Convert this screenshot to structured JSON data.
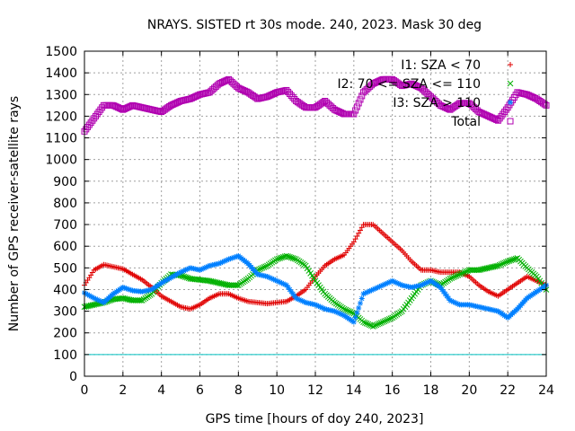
{
  "chart_data": {
    "type": "scatter",
    "title": "NRAYS. SISTED rt 30s mode. 240, 2023. Mask 30 deg",
    "xlabel": "GPS time [hours of doy 240, 2023]",
    "ylabel": "Number of GPS receiver-satellite rays",
    "xlim": [
      0,
      24
    ],
    "ylim": [
      0,
      1500
    ],
    "x_ticks": [
      0,
      2,
      4,
      6,
      8,
      10,
      12,
      14,
      16,
      18,
      20,
      22,
      24
    ],
    "y_ticks": [
      0,
      100,
      200,
      300,
      400,
      500,
      600,
      700,
      800,
      900,
      1000,
      1100,
      1200,
      1300,
      1400,
      1500
    ],
    "grid": true,
    "legend_position": "top-right",
    "threshold_line": {
      "y": 100,
      "color": "#00c0c0"
    },
    "series": [
      {
        "name": "I1: SZA < 70",
        "marker": "+",
        "color": "#e00000",
        "x": [
          0,
          0.5,
          1,
          1.5,
          2,
          2.5,
          3,
          3.5,
          4,
          4.5,
          5,
          5.5,
          6,
          6.5,
          7,
          7.5,
          8,
          8.5,
          9,
          9.5,
          10,
          10.5,
          11,
          11.5,
          12,
          12.5,
          13,
          13.5,
          14,
          14.5,
          15,
          15.5,
          16,
          16.5,
          17,
          17.5,
          18,
          18.5,
          19,
          19.5,
          20,
          20.5,
          21,
          21.5,
          22,
          22.5,
          23,
          23.5,
          24
        ],
        "values": [
          420,
          490,
          515,
          505,
          495,
          470,
          445,
          410,
          370,
          345,
          320,
          310,
          330,
          360,
          380,
          380,
          360,
          345,
          340,
          335,
          340,
          345,
          370,
          400,
          460,
          510,
          540,
          560,
          620,
          700,
          700,
          660,
          620,
          580,
          530,
          490,
          490,
          480,
          480,
          480,
          460,
          420,
          390,
          370,
          400,
          430,
          460,
          440,
          420
        ]
      },
      {
        "name": "I2: 70 <= SZA <= 110",
        "marker": "x",
        "color": "#00b000",
        "x": [
          0,
          0.5,
          1,
          1.5,
          2,
          2.5,
          3,
          3.5,
          4,
          4.5,
          5,
          5.5,
          6,
          6.5,
          7,
          7.5,
          8,
          8.5,
          9,
          9.5,
          10,
          10.5,
          11,
          11.5,
          12,
          12.5,
          13,
          13.5,
          14,
          14.5,
          15,
          15.5,
          16,
          16.5,
          17,
          17.5,
          18,
          18.5,
          19,
          19.5,
          20,
          20.5,
          21,
          21.5,
          22,
          22.5,
          23,
          23.5,
          24
        ],
        "values": [
          320,
          330,
          340,
          355,
          360,
          350,
          350,
          380,
          430,
          470,
          465,
          450,
          445,
          440,
          430,
          420,
          420,
          450,
          490,
          510,
          540,
          555,
          540,
          510,
          440,
          380,
          340,
          310,
          290,
          250,
          230,
          250,
          270,
          300,
          360,
          420,
          440,
          420,
          450,
          470,
          490,
          490,
          500,
          510,
          530,
          545,
          500,
          460,
          400
        ]
      },
      {
        "name": "I3: SZA > 110",
        "marker": "*",
        "color": "#0080ff",
        "x": [
          0,
          0.5,
          1,
          1.5,
          2,
          2.5,
          3,
          3.5,
          4,
          4.5,
          5,
          5.5,
          6,
          6.5,
          7,
          7.5,
          8,
          8.5,
          9,
          9.5,
          10,
          10.5,
          11,
          11.5,
          12,
          12.5,
          13,
          13.5,
          14,
          14.5,
          15,
          15.5,
          16,
          16.5,
          17,
          17.5,
          18,
          18.5,
          19,
          19.5,
          20,
          20.5,
          21,
          21.5,
          22,
          22.5,
          23,
          23.5,
          24
        ],
        "values": [
          385,
          360,
          340,
          380,
          410,
          395,
          390,
          400,
          430,
          455,
          480,
          500,
          490,
          510,
          520,
          540,
          555,
          520,
          470,
          460,
          440,
          420,
          360,
          340,
          330,
          310,
          300,
          280,
          250,
          380,
          400,
          420,
          440,
          420,
          410,
          420,
          440,
          410,
          350,
          330,
          330,
          320,
          310,
          300,
          270,
          310,
          360,
          390,
          420
        ]
      },
      {
        "name": "Total",
        "marker": "square",
        "color": "#b000b0",
        "x": [
          0,
          0.5,
          1,
          1.5,
          2,
          2.5,
          3,
          3.5,
          4,
          4.5,
          5,
          5.5,
          6,
          6.5,
          7,
          7.5,
          8,
          8.5,
          9,
          9.5,
          10,
          10.5,
          11,
          11.5,
          12,
          12.5,
          13,
          13.5,
          14,
          14.5,
          15,
          15.5,
          16,
          16.5,
          17,
          17.5,
          18,
          18.5,
          19,
          19.5,
          20,
          20.5,
          21,
          21.5,
          22,
          22.5,
          23,
          23.5,
          24
        ],
        "values": [
          1130,
          1190,
          1250,
          1250,
          1230,
          1250,
          1240,
          1230,
          1220,
          1250,
          1270,
          1280,
          1300,
          1310,
          1350,
          1370,
          1330,
          1310,
          1280,
          1290,
          1310,
          1320,
          1270,
          1240,
          1240,
          1270,
          1230,
          1210,
          1210,
          1310,
          1350,
          1370,
          1370,
          1340,
          1350,
          1330,
          1290,
          1250,
          1230,
          1260,
          1260,
          1220,
          1200,
          1180,
          1240,
          1310,
          1300,
          1280,
          1250
        ]
      }
    ]
  }
}
